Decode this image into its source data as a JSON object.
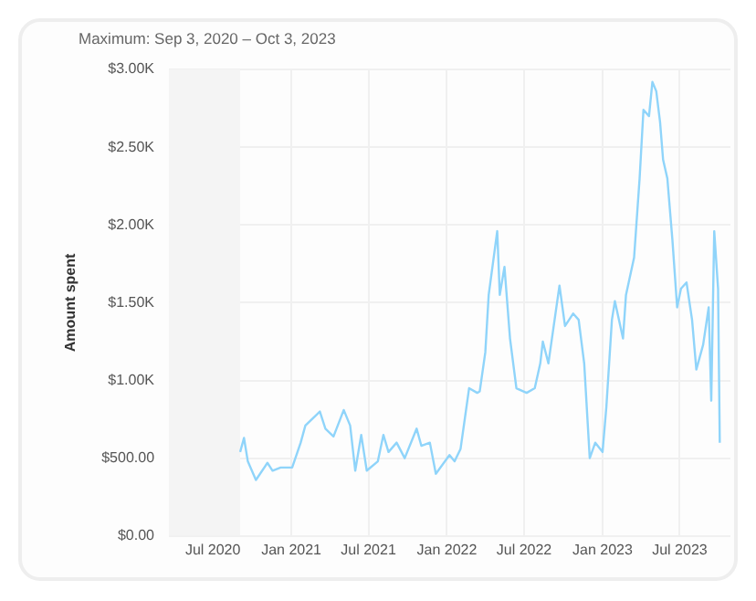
{
  "chart_data": {
    "type": "line",
    "title": "Maximum: Sep 3, 2020 – Oct 3, 2023",
    "ylabel": "Amount spent",
    "x": [
      "2020-09-03",
      "2020-09-12",
      "2020-09-21",
      "2020-10-10",
      "2020-11-06",
      "2020-11-18",
      "2020-12-07",
      "2021-01-03",
      "2021-01-23",
      "2021-02-03",
      "2021-03-09",
      "2021-03-22",
      "2021-04-10",
      "2021-05-04",
      "2021-05-19",
      "2021-05-31",
      "2021-06-14",
      "2021-06-27",
      "2021-07-23",
      "2021-08-05",
      "2021-08-17",
      "2021-09-05",
      "2021-09-24",
      "2021-10-22",
      "2021-11-02",
      "2021-11-22",
      "2021-12-06",
      "2022-01-07",
      "2022-01-19",
      "2022-02-02",
      "2022-02-22",
      "2022-03-13",
      "2022-03-19",
      "2022-04-01",
      "2022-04-09",
      "2022-04-29",
      "2022-05-05",
      "2022-05-16",
      "2022-05-29",
      "2022-06-13",
      "2022-07-07",
      "2022-07-26",
      "2022-08-08",
      "2022-08-14",
      "2022-08-27",
      "2022-09-22",
      "2022-10-05",
      "2022-10-24",
      "2022-11-06",
      "2022-11-19",
      "2022-12-02",
      "2022-12-15",
      "2023-01-01",
      "2023-01-10",
      "2023-01-23",
      "2023-01-30",
      "2023-02-18",
      "2023-02-25",
      "2023-03-16",
      "2023-03-29",
      "2023-04-07",
      "2023-04-20",
      "2023-04-28",
      "2023-05-07",
      "2023-05-16",
      "2023-05-23",
      "2023-06-02",
      "2023-06-14",
      "2023-06-25",
      "2023-07-04",
      "2023-07-17",
      "2023-07-30",
      "2023-08-09",
      "2023-08-25",
      "2023-09-07",
      "2023-09-13",
      "2023-09-20",
      "2023-09-29",
      "2023-10-03"
    ],
    "series": [
      {
        "color": "#8fd4fa",
        "values": [
          540,
          630,
          480,
          360,
          470,
          420,
          440,
          440,
          600,
          710,
          800,
          690,
          640,
          810,
          710,
          420,
          650,
          420,
          480,
          650,
          540,
          600,
          500,
          690,
          580,
          600,
          400,
          520,
          480,
          560,
          950,
          920,
          930,
          1180,
          1550,
          1960,
          1550,
          1730,
          1270,
          950,
          920,
          950,
          1110,
          1250,
          1110,
          1610,
          1350,
          1430,
          1390,
          1110,
          500,
          600,
          540,
          830,
          1390,
          1510,
          1270,
          1550,
          1790,
          2300,
          2740,
          2700,
          2920,
          2860,
          2660,
          2420,
          2300,
          1900,
          1470,
          1590,
          1630,
          1390,
          1070,
          1230,
          1470,
          870,
          1960,
          1590,
          600
        ]
      }
    ],
    "xlim": [
      "2020-03-20",
      "2023-10-28"
    ],
    "xticks": [
      {
        "value": "2020-07-01",
        "label": "Jul 2020"
      },
      {
        "value": "2021-01-01",
        "label": "Jan 2021"
      },
      {
        "value": "2021-07-01",
        "label": "Jul 2021"
      },
      {
        "value": "2022-01-01",
        "label": "Jan 2022"
      },
      {
        "value": "2022-07-01",
        "label": "Jul 2022"
      },
      {
        "value": "2023-01-01",
        "label": "Jan 2023"
      },
      {
        "value": "2023-07-01",
        "label": "Jul 2023"
      }
    ],
    "ylim": [
      0,
      3000
    ],
    "yticks": [
      {
        "value": 0,
        "label": "$0.00"
      },
      {
        "value": 500,
        "label": "$500.00"
      },
      {
        "value": 1000,
        "label": "$1.00K"
      },
      {
        "value": 1500,
        "label": "$1.50K"
      },
      {
        "value": 2000,
        "label": "$2.00K"
      },
      {
        "value": 2500,
        "label": "$2.50K"
      },
      {
        "value": 3000,
        "label": "$3.00K"
      }
    ],
    "bands": [
      {
        "axis": "x",
        "from": "2020-03-20",
        "to": "2020-09-03",
        "color": "#f4f4f4"
      }
    ],
    "grid": true,
    "marker": "none",
    "line_style": "solid",
    "legend": false
  }
}
